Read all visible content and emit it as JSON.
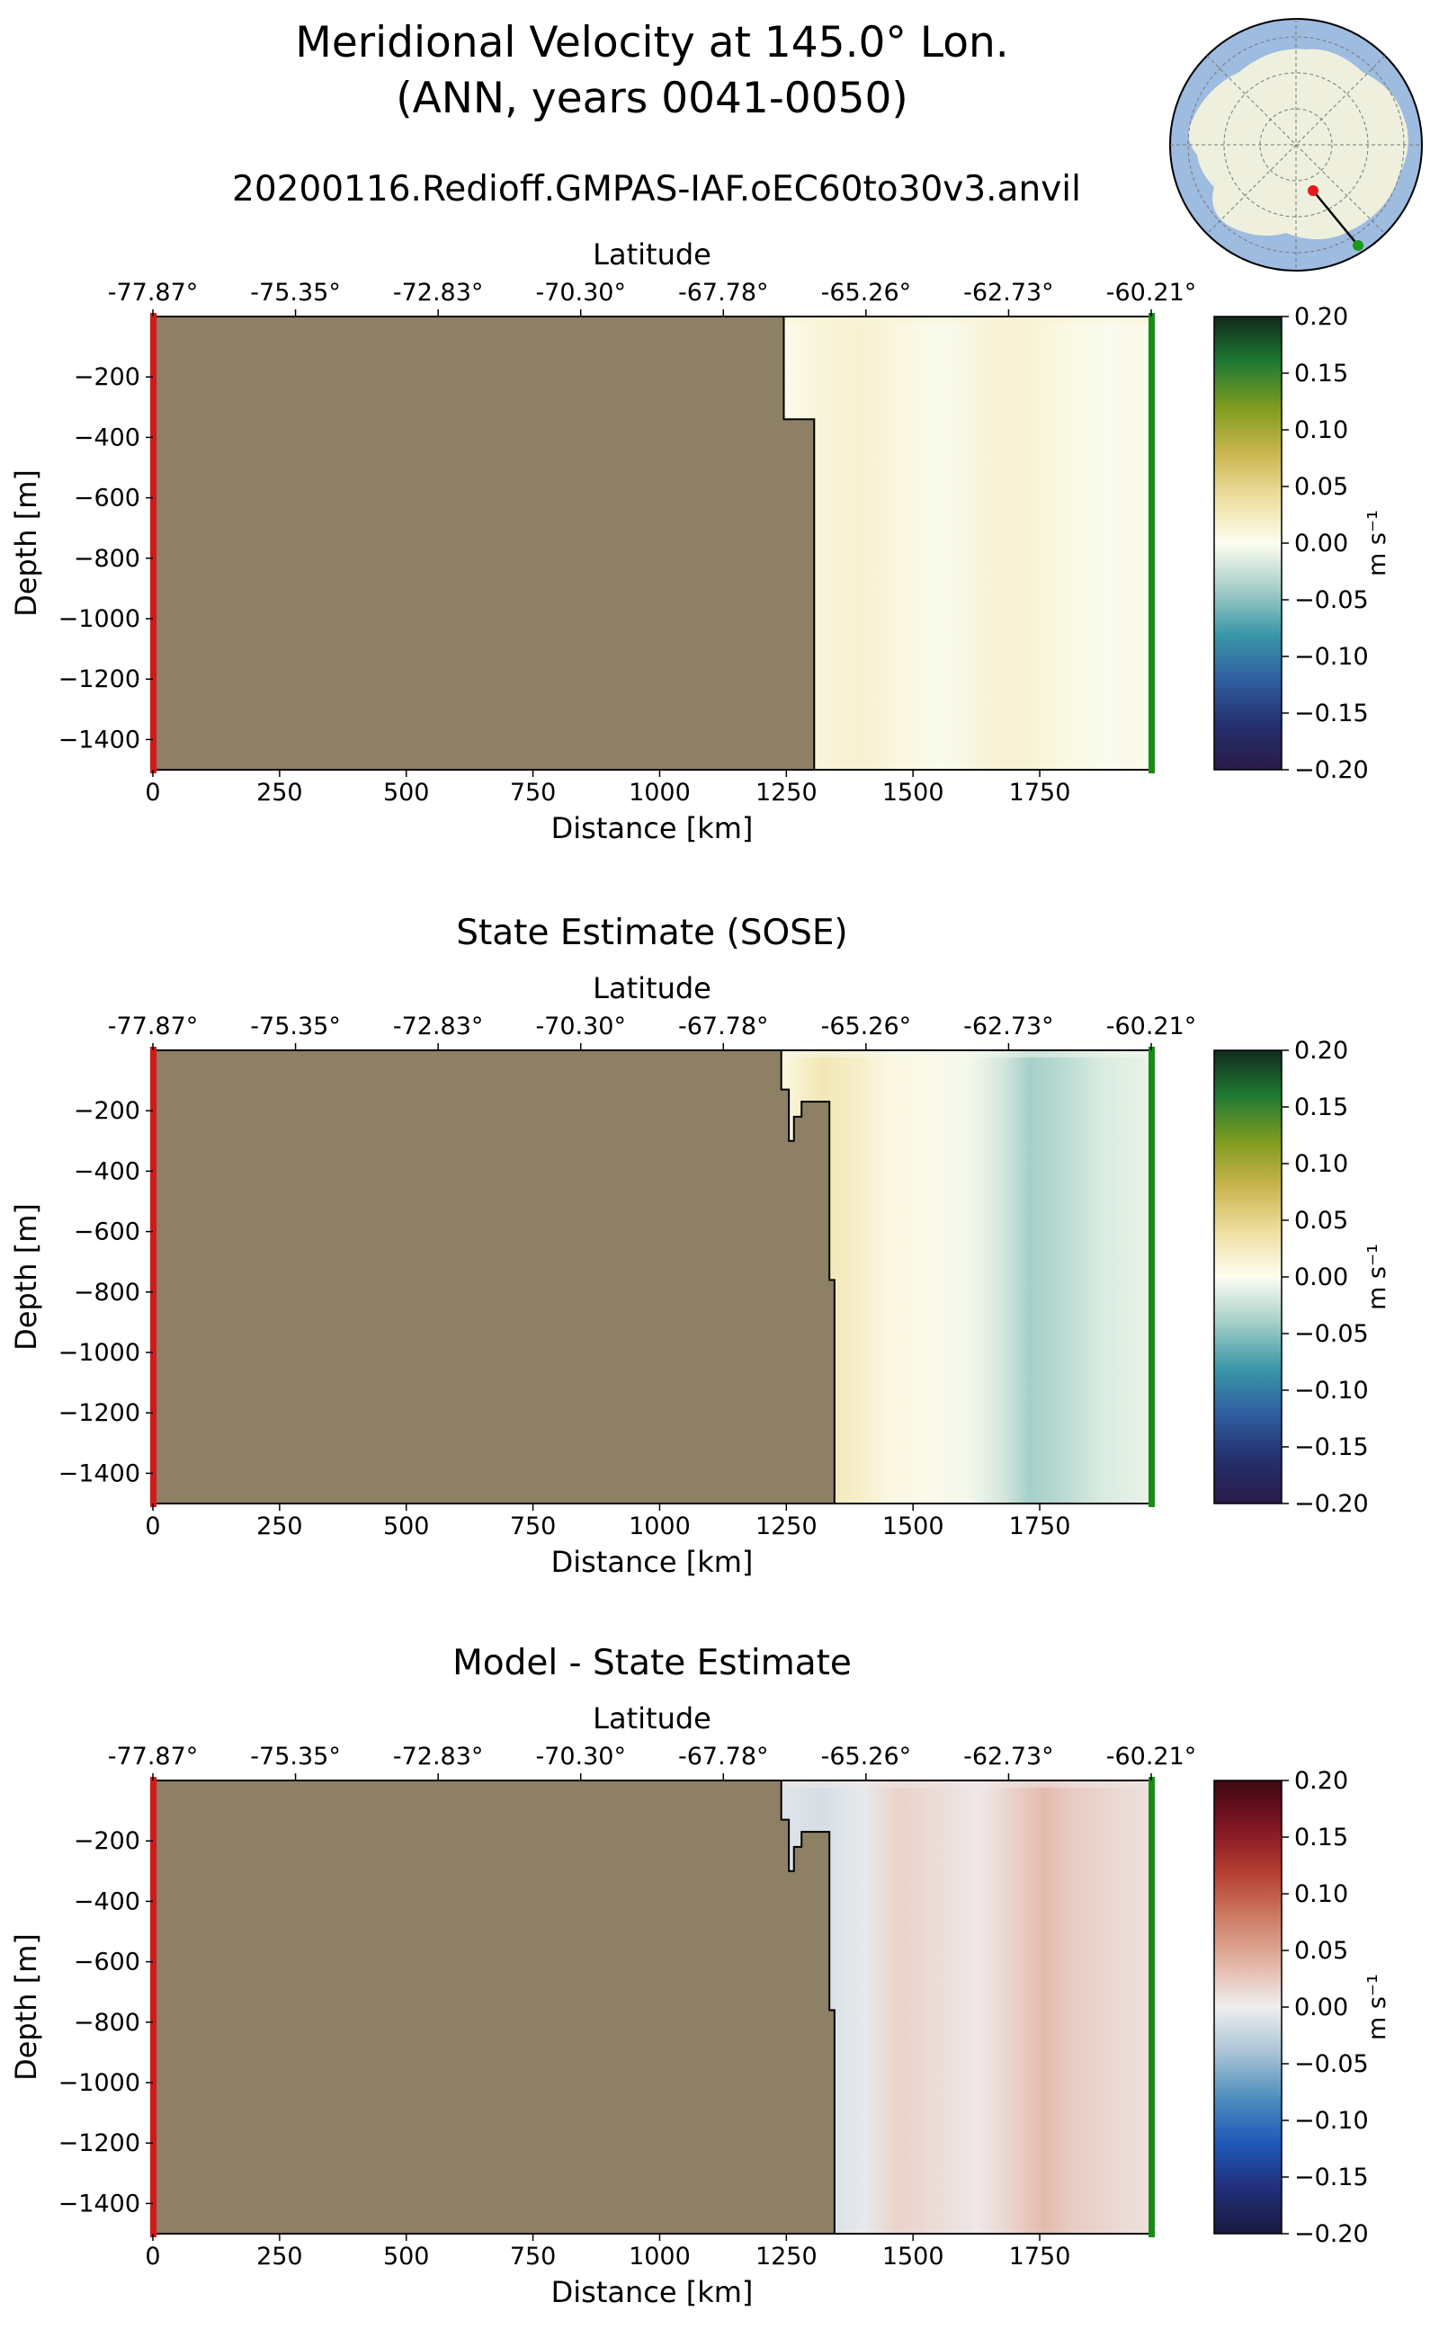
{
  "figure": {
    "title_line1": "Meridional Velocity at 145.0° Lon.",
    "title_line2": "(ANN, years 0041-0050)",
    "subtitle": "20200116.Redioff.GMPAS-IAF.oEC60to30v3.anvil"
  },
  "inset_map": {
    "projection": "south-polar stereographic",
    "ocean_color": "#9ebbe0",
    "land_color": "#eef0dd",
    "transect_start_color": "#e41a1c",
    "transect_end_color": "#1a9a1a"
  },
  "style": {
    "land_mask_color": "#8e8065",
    "left_marker_color": "#d21a1a",
    "right_marker_color": "#1a8a1a"
  },
  "chart_data": [
    {
      "type": "heatmap",
      "title": "",
      "xlabel": "Distance [km]",
      "ylabel": "Depth [m]",
      "top_axis_label": "Latitude",
      "top_ticks": [
        "-77.87°",
        "-75.35°",
        "-72.83°",
        "-70.30°",
        "-67.78°",
        "-65.26°",
        "-62.73°",
        "-60.21°"
      ],
      "xlim": [
        0,
        1970
      ],
      "ylim": [
        -1500,
        0
      ],
      "x_ticks": [
        0,
        250,
        500,
        750,
        1000,
        1250,
        1500,
        1750
      ],
      "y_ticks": [
        -200,
        -400,
        -600,
        -800,
        -1000,
        -1200,
        -1400
      ],
      "colorbar": {
        "label": "m s⁻¹",
        "ticks": [
          "0.20",
          "0.15",
          "0.10",
          "0.05",
          "0.00",
          "−0.05",
          "−0.10",
          "−0.15",
          "−0.20"
        ],
        "range": [
          -0.2,
          0.2
        ],
        "colormap": "delta",
        "stops": [
          "#2a1a49",
          "#24306e",
          "#2f5fa0",
          "#3a98a8",
          "#a6cfc9",
          "#fdfdf0",
          "#eedfa0",
          "#c9b54e",
          "#7e9b1e",
          "#1e7a34",
          "#112a1d"
        ]
      },
      "bathymetry": {
        "distance_km": [
          1245,
          1245,
          1305,
          1305
        ],
        "depth_m": [
          0,
          -340,
          -340,
          -1500
        ]
      },
      "velocity_profile": {
        "distance_km": [
          1250,
          1320,
          1400,
          1470,
          1560,
          1650,
          1720,
          1800,
          1880,
          1960
        ],
        "value_ms": [
          0.003,
          0.012,
          0.016,
          0.008,
          -0.002,
          0.013,
          0.015,
          0.006,
          -0.002,
          0.004
        ]
      }
    },
    {
      "type": "heatmap",
      "title": "State Estimate (SOSE)",
      "xlabel": "Distance [km]",
      "ylabel": "Depth [m]",
      "top_axis_label": "Latitude",
      "top_ticks": [
        "-77.87°",
        "-75.35°",
        "-72.83°",
        "-70.30°",
        "-67.78°",
        "-65.26°",
        "-62.73°",
        "-60.21°"
      ],
      "xlim": [
        0,
        1970
      ],
      "ylim": [
        -1500,
        0
      ],
      "x_ticks": [
        0,
        250,
        500,
        750,
        1000,
        1250,
        1500,
        1750
      ],
      "y_ticks": [
        -200,
        -400,
        -600,
        -800,
        -1000,
        -1200,
        -1400
      ],
      "colorbar": {
        "label": "m s⁻¹",
        "ticks": [
          "0.20",
          "0.15",
          "0.10",
          "0.05",
          "0.00",
          "−0.05",
          "−0.10",
          "−0.15",
          "−0.20"
        ],
        "range": [
          -0.2,
          0.2
        ],
        "colormap": "delta",
        "stops": [
          "#2a1a49",
          "#24306e",
          "#2f5fa0",
          "#3a98a8",
          "#a6cfc9",
          "#fdfdf0",
          "#eedfa0",
          "#c9b54e",
          "#7e9b1e",
          "#1e7a34",
          "#112a1d"
        ]
      },
      "bathymetry": {
        "distance_km": [
          1240,
          1240,
          1255,
          1255,
          1265,
          1265,
          1280,
          1280,
          1335,
          1335,
          1345,
          1345
        ],
        "depth_m": [
          0,
          -130,
          -130,
          -300,
          -300,
          -220,
          -220,
          -170,
          -170,
          -760,
          -760,
          -1500
        ]
      },
      "velocity_profile": {
        "distance_km": [
          1250,
          1320,
          1390,
          1450,
          1530,
          1610,
          1680,
          1730,
          1800,
          1880,
          1960
        ],
        "value_ms": [
          0.01,
          0.03,
          0.02,
          0.008,
          0.004,
          -0.004,
          -0.02,
          -0.04,
          -0.03,
          -0.015,
          -0.01
        ]
      }
    },
    {
      "type": "heatmap",
      "title": "Model - State Estimate",
      "xlabel": "Distance [km]",
      "ylabel": "Depth [m]",
      "top_axis_label": "Latitude",
      "top_ticks": [
        "-77.87°",
        "-75.35°",
        "-72.83°",
        "-70.30°",
        "-67.78°",
        "-65.26°",
        "-62.73°",
        "-60.21°"
      ],
      "xlim": [
        0,
        1970
      ],
      "ylim": [
        -1500,
        0
      ],
      "x_ticks": [
        0,
        250,
        500,
        750,
        1000,
        1250,
        1500,
        1750
      ],
      "y_ticks": [
        -200,
        -400,
        -600,
        -800,
        -1000,
        -1200,
        -1400
      ],
      "colorbar": {
        "label": "m s⁻¹",
        "ticks": [
          "0.20",
          "0.15",
          "0.10",
          "0.05",
          "0.00",
          "−0.05",
          "−0.10",
          "−0.15",
          "−0.20"
        ],
        "range": [
          -0.2,
          0.2
        ],
        "colormap": "balance",
        "stops": [
          "#171a3f",
          "#222f7a",
          "#1f58b8",
          "#4d8fbe",
          "#a9c4d6",
          "#f0eeee",
          "#e2b3a3",
          "#cd7b62",
          "#b43c30",
          "#7f1424",
          "#3c0911"
        ]
      },
      "bathymetry": {
        "distance_km": [
          1240,
          1240,
          1255,
          1255,
          1265,
          1265,
          1280,
          1280,
          1335,
          1335,
          1345,
          1345
        ],
        "depth_m": [
          0,
          -130,
          -130,
          -300,
          -300,
          -220,
          -220,
          -170,
          -170,
          -760,
          -760,
          -1500
        ]
      },
      "velocity_profile": {
        "distance_km": [
          1250,
          1320,
          1400,
          1470,
          1550,
          1630,
          1700,
          1760,
          1820,
          1900,
          1960
        ],
        "value_ms": [
          -0.01,
          -0.015,
          -0.005,
          0.018,
          0.012,
          0.004,
          0.02,
          0.035,
          0.022,
          0.015,
          0.01
        ]
      }
    }
  ]
}
